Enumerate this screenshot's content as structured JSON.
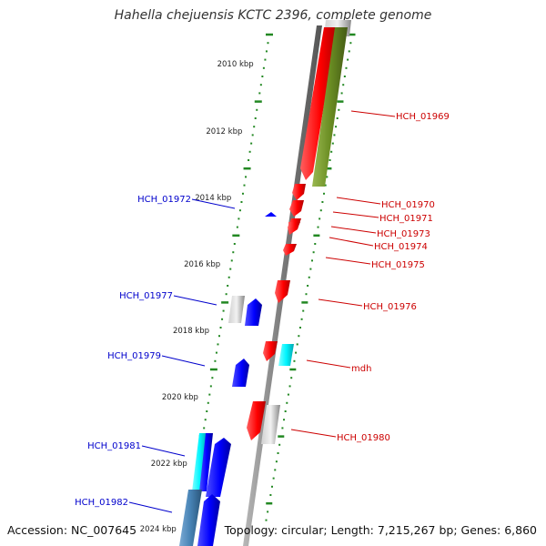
{
  "title": "Hahella chejuensis KCTC 2396, complete genome",
  "accession_text": "Accession: NC_007645",
  "info_text": "Topology: circular; Length: 7,215,267 bp; Genes: 6,860",
  "colors": {
    "forward": "#ff0000",
    "reverse": "#0000ff",
    "label_forward": "#cc0000",
    "label_reverse": "#0000cc",
    "tick": "#228822",
    "backbone": "#888888",
    "rna": "#00e5ee",
    "pseudo": "#aaaaaa",
    "olive": "#6b8e23",
    "steel": "#4682b4"
  },
  "scale_labels": [
    "2010 kbp",
    "2012 kbp",
    "2014 kbp",
    "2016 kbp",
    "2018 kbp",
    "2020 kbp",
    "2022 kbp",
    "2024 kbp"
  ],
  "genes_forward": [
    "HCH_01969",
    "HCH_01970",
    "HCH_01971",
    "HCH_01973",
    "HCH_01974",
    "HCH_01975",
    "HCH_01976",
    "mdh",
    "HCH_01980"
  ],
  "genes_reverse": [
    "HCH_01972",
    "HCH_01977",
    "HCH_01979",
    "HCH_01981",
    "HCH_01982"
  ]
}
